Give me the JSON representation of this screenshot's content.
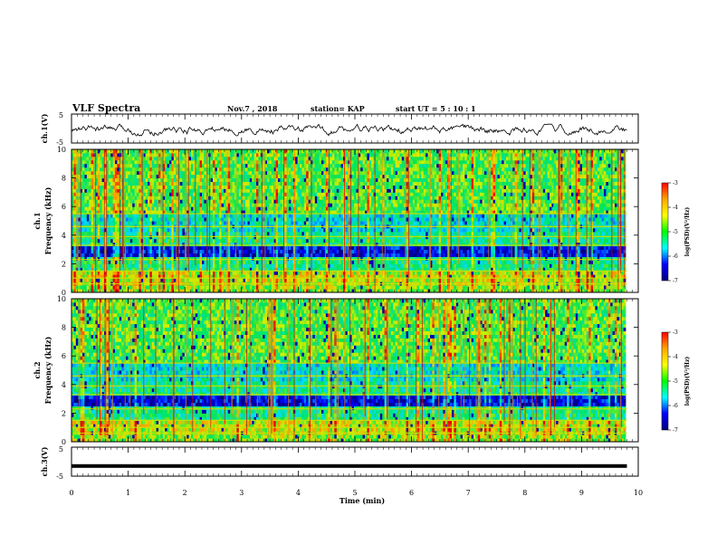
{
  "header": {
    "title": "VLF Spectra",
    "date": "Nov.7 , 2018",
    "station": "station= KAP",
    "start": "start  UT =   5 : 10 : 1"
  },
  "panels": {
    "ch1v": {
      "ylabel": "ch.1(V)",
      "yticks": [
        "5",
        "-5"
      ]
    },
    "spec1": {
      "ylabel": "ch.1",
      "ylabel2": "Frequency (kHz)",
      "yticks": [
        "0",
        "2",
        "4",
        "6",
        "8",
        "10"
      ]
    },
    "spec2": {
      "ylabel": "ch.2",
      "ylabel2": "Frequency (kHz)",
      "yticks": [
        "0",
        "2",
        "4",
        "6",
        "8",
        "10"
      ]
    },
    "ch3v": {
      "ylabel": "ch.3(V)",
      "yticks": [
        "5",
        "-5"
      ]
    }
  },
  "xaxis": {
    "label": "Time (min)",
    "ticks": [
      "0",
      "1",
      "2",
      "3",
      "4",
      "5",
      "6",
      "7",
      "8",
      "9",
      "10"
    ]
  },
  "colorbar": {
    "label": "log(PSD)(V²/Hz)",
    "ticks": [
      "-3",
      "-4",
      "-5",
      "-6",
      "-7"
    ],
    "colors": [
      "#ff0000",
      "#ffa500",
      "#ffff00",
      "#00ff00",
      "#00ffff",
      "#0000ff",
      "#000080"
    ]
  },
  "chart_data": {
    "type": "heatmap",
    "title": "VLF Spectra",
    "xlabel": "Time (min)",
    "xlim": [
      0,
      10
    ],
    "data_end_min": 9.8,
    "channels": [
      {
        "name": "ch.1",
        "ylabel": "Frequency (kHz)",
        "ylim": [
          0,
          10
        ],
        "zlim": [
          -7,
          -3
        ]
      },
      {
        "name": "ch.2",
        "ylabel": "Frequency (kHz)",
        "ylim": [
          0,
          10
        ],
        "zlim": [
          -7,
          -3
        ]
      }
    ],
    "waveforms": [
      {
        "name": "ch.1(V)",
        "ylim": [
          -5,
          5
        ],
        "amplitude_range": [
          -2.5,
          1.5
        ]
      },
      {
        "name": "ch.3(V)",
        "ylim": [
          -5,
          5
        ],
        "constant_value": -1.5
      }
    ]
  }
}
